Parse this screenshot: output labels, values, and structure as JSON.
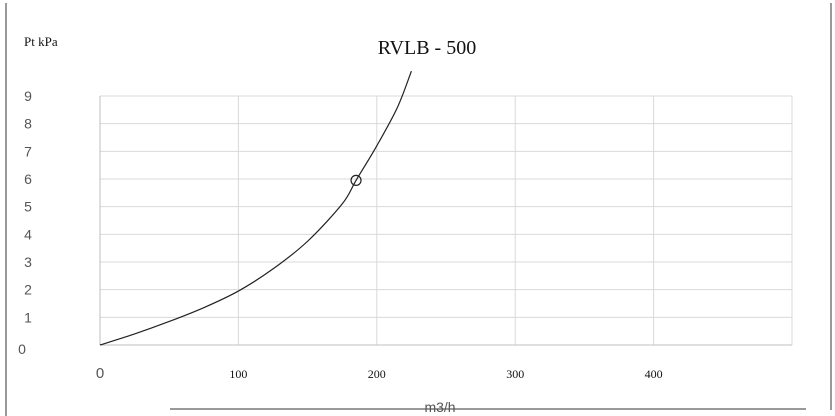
{
  "chart_data": {
    "type": "line",
    "title": "RVLB - 500",
    "ylabel": "Pt kPa",
    "xlabel": "m3/h",
    "xlim": [
      0,
      500
    ],
    "ylim": [
      0,
      9
    ],
    "x_ticks": [
      0,
      100,
      200,
      300,
      400
    ],
    "y_ticks": [
      0,
      1,
      2,
      3,
      4,
      5,
      6,
      7,
      8,
      9
    ],
    "grid": true,
    "series": [
      {
        "x": [
          0,
          25,
          50,
          75,
          100,
          125,
          150,
          175,
          185,
          200,
          215,
          225
        ],
        "y": [
          0,
          0.4,
          0.85,
          1.35,
          1.95,
          2.75,
          3.75,
          5.1,
          5.95,
          7.2,
          8.6,
          9.9
        ]
      }
    ],
    "marker_point": {
      "x": 185,
      "y": 5.95
    }
  },
  "colors": {
    "grid": "#d9d9d9",
    "line": "#222222",
    "frame": "#333333"
  }
}
